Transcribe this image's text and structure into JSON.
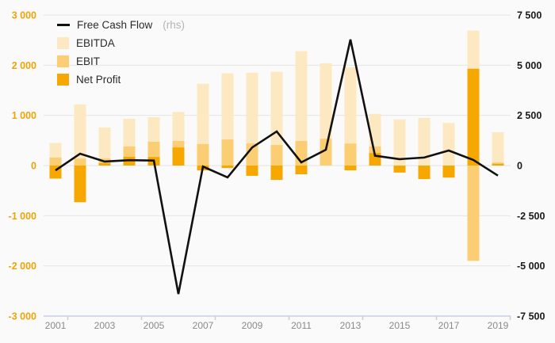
{
  "legend": {
    "items": [
      {
        "label": "Free Cash Flow",
        "suffix": "(rhs)",
        "swatch": "line"
      },
      {
        "label": "EBITDA",
        "swatch": "box"
      },
      {
        "label": "EBIT",
        "swatch": "box"
      },
      {
        "label": "Net Profit",
        "swatch": "box"
      }
    ]
  },
  "colors": {
    "background": "#fafafa",
    "gridline": "#e4e4e4",
    "axis_line": "#c9cee4",
    "left_tick_text": "#f0a306",
    "right_tick_text": "#1a1a1a",
    "x_tick_text": "#8a8a8a",
    "ebitda": "#fce9c1",
    "ebit": "#fbce74",
    "net_profit": "#f7a800",
    "fcf_line": "#111111"
  },
  "chart_data": {
    "type": "bar+line combo",
    "x": [
      2001,
      2002,
      2003,
      2004,
      2005,
      2006,
      2007,
      2008,
      2009,
      2010,
      2011,
      2012,
      2013,
      2014,
      2015,
      2016,
      2017,
      2018,
      2019
    ],
    "series": [
      {
        "name": "EBITDA",
        "type": "bar",
        "axis": "left",
        "color": "#fce9c1",
        "values": [
          450,
          1220,
          760,
          930,
          965,
          1070,
          1630,
          1840,
          1850,
          1870,
          2280,
          2040,
          1960,
          1030,
          920,
          950,
          850,
          2690,
          665
        ]
      },
      {
        "name": "EBIT",
        "type": "bar",
        "axis": "left",
        "color": "#fbce74",
        "values": [
          160,
          140,
          140,
          380,
          475,
          490,
          430,
          520,
          440,
          410,
          490,
          535,
          440,
          380,
          0,
          0,
          0,
          -1900,
          60
        ]
      },
      {
        "name": "Net Profit",
        "type": "bar",
        "axis": "left",
        "color": "#f7a800",
        "values": [
          -260,
          -730,
          50,
          175,
          170,
          360,
          -95,
          -50,
          -205,
          -285,
          -175,
          0,
          -95,
          250,
          -140,
          -270,
          -240,
          1930,
          35
        ]
      },
      {
        "name": "Free Cash Flow",
        "type": "line",
        "axis": "right",
        "color": "#111111",
        "values": [
          -240,
          590,
          200,
          270,
          250,
          -6400,
          -50,
          -590,
          900,
          1700,
          160,
          790,
          6280,
          490,
          320,
          400,
          750,
          280,
          -500
        ]
      }
    ],
    "left_axis": {
      "min": -3000,
      "max": 3000,
      "tick_step": 1000,
      "tick_labels": [
        "3 000",
        "2 000",
        "1 000",
        "0",
        "-1 000",
        "-2 000",
        "-3 000"
      ]
    },
    "right_axis": {
      "min": -7500,
      "max": 7500,
      "tick_step": 2500,
      "tick_labels": [
        "7 500",
        "5 000",
        "2 500",
        "0",
        "-2 500",
        "-5 000",
        "-7 500"
      ]
    },
    "x_tick_labels": [
      "2001",
      "2003",
      "2005",
      "2007",
      "2009",
      "2011",
      "2013",
      "2015",
      "2017",
      "2019"
    ],
    "legend_position": "top-left inside plot",
    "grid": "horizontal only"
  }
}
